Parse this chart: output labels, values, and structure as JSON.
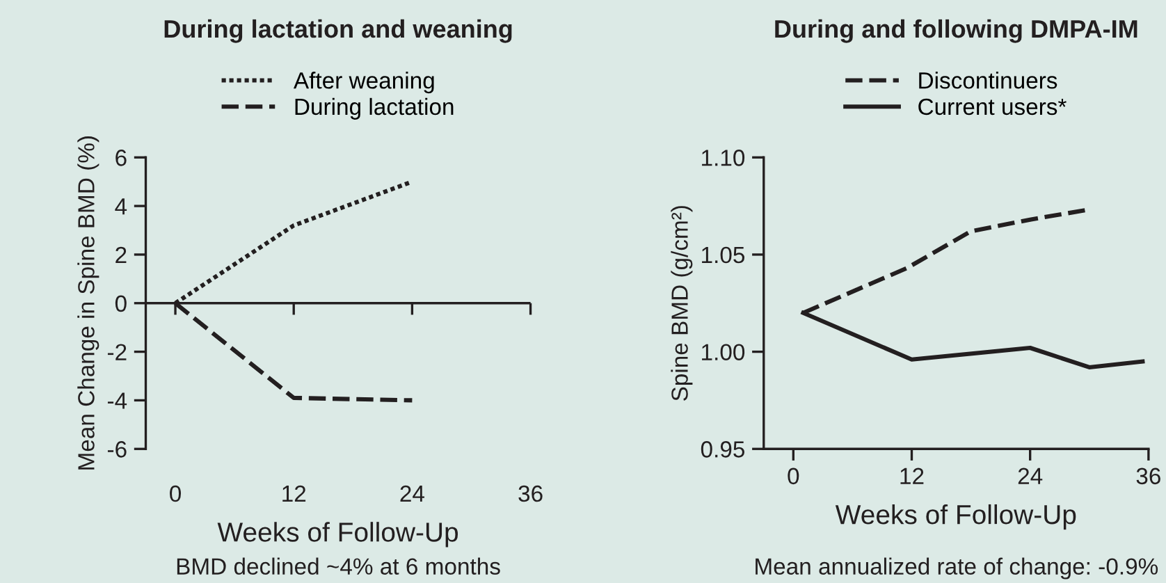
{
  "chart_data": [
    {
      "type": "line",
      "title": "During lactation and weaning",
      "xlabel": "Weeks of Follow-Up",
      "ylabel": "Mean Change in Spine BMD (%)",
      "xlim": [
        -3,
        36
      ],
      "xticks": [
        0,
        12,
        24,
        36
      ],
      "ylim": [
        -6,
        6
      ],
      "yticks": [
        -6,
        -4,
        -2,
        0,
        2,
        4,
        6
      ],
      "legend": "top",
      "grid": false,
      "ref_lines": [
        {
          "axis": "y",
          "value": 0,
          "color": "#231f20",
          "line_style": "solid"
        }
      ],
      "series": [
        {
          "name": "After weaning",
          "color": "#231f20",
          "line_style": "dotted",
          "x": [
            0,
            12,
            24
          ],
          "values": [
            0,
            3.2,
            5
          ]
        },
        {
          "name": "During lactation",
          "color": "#231f20",
          "line_style": "dashed",
          "x": [
            0,
            12,
            24
          ],
          "values": [
            0,
            -3.9,
            -4
          ]
        }
      ],
      "annotations": [
        "BMD declined ~4% at 6 months"
      ]
    },
    {
      "type": "line",
      "title": "During and following DMPA-IM",
      "xlabel": "Weeks of Follow-Up",
      "ylabel": "Spine BMD (g/cm²)",
      "xlim": [
        -3,
        36
      ],
      "xticks": [
        0,
        12,
        24,
        36
      ],
      "ylim": [
        0.95,
        1.1
      ],
      "yticks": [
        {
          "value": 0.95,
          "label": "0.95"
        },
        {
          "value": 1.0,
          "label": "1.00"
        },
        {
          "value": 1.05,
          "label": "1.05"
        },
        {
          "value": 1.1,
          "label": "1.10"
        }
      ],
      "legend": "top",
      "grid": false,
      "series": [
        {
          "name": "Discontinuers",
          "color": "#231f20",
          "line_style": "dashed",
          "x": [
            1,
            11.5,
            18,
            24,
            29.8
          ],
          "values": [
            1.02,
            1.043,
            1.062,
            1.068,
            1.073
          ]
        },
        {
          "name": "Current users*",
          "color": "#231f20",
          "line_style": "solid",
          "x": [
            1,
            12,
            24,
            30,
            35.4
          ],
          "values": [
            1.02,
            0.996,
            1.002,
            0.992,
            0.995
          ]
        }
      ],
      "annotations": [
        "Mean annualized rate of change: -0.9%"
      ]
    }
  ]
}
